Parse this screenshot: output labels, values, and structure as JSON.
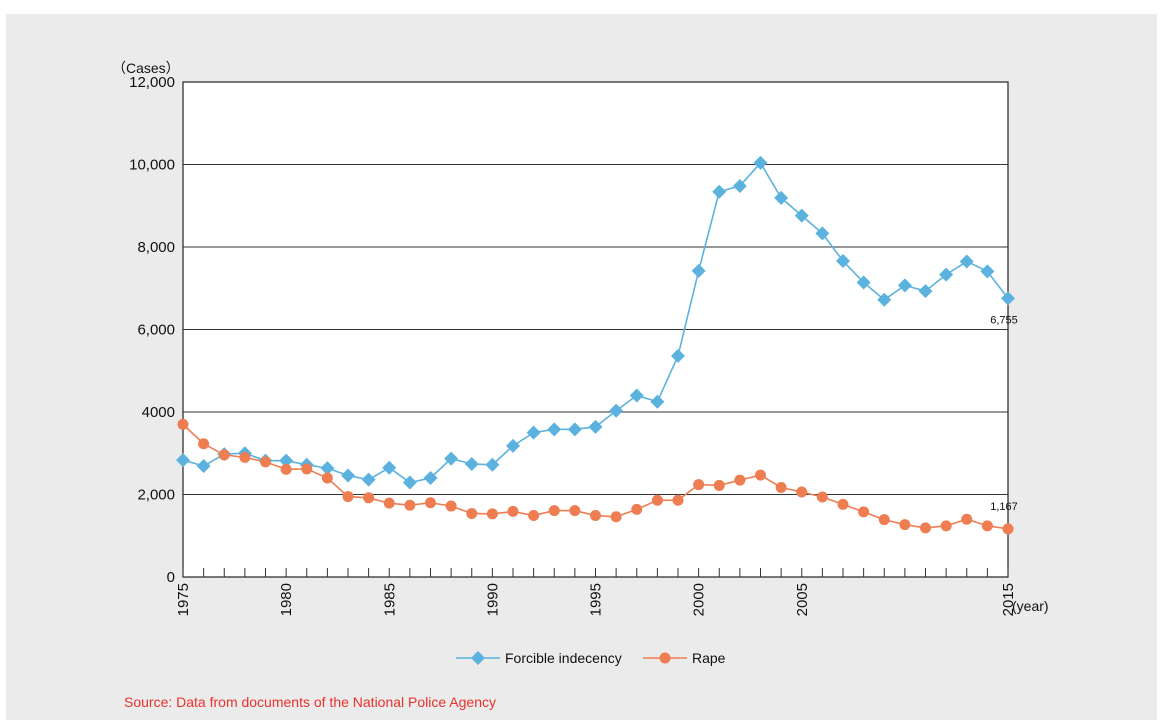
{
  "chart_data": {
    "type": "line",
    "title": "",
    "ylabel": "（Cases）",
    "xlabel": "(year)",
    "ylim": [
      0,
      12000
    ],
    "xlim": [
      1975,
      2015
    ],
    "y_ticks": [
      {
        "value": 0,
        "label": "0"
      },
      {
        "value": 2000,
        "label": "2,000"
      },
      {
        "value": 4000,
        "label": "4000"
      },
      {
        "value": 6000,
        "label": "6,000"
      },
      {
        "value": 8000,
        "label": "8,000"
      },
      {
        "value": 10000,
        "label": "10,000"
      },
      {
        "value": 12000,
        "label": "12,000"
      }
    ],
    "x_tick_labels": [
      "1975",
      "1980",
      "1985",
      "1990",
      "1995",
      "2000",
      "2005",
      "2015"
    ],
    "grid": true,
    "legend": "bottom-center",
    "x": [
      1975,
      1976,
      1977,
      1978,
      1979,
      1980,
      1981,
      1982,
      1983,
      1984,
      1985,
      1986,
      1987,
      1988,
      1989,
      1990,
      1991,
      1992,
      1993,
      1994,
      1995,
      1996,
      1997,
      1998,
      1999,
      2000,
      2001,
      2002,
      2003,
      2004,
      2005,
      2006,
      2007,
      2008,
      2009,
      2010,
      2011,
      2012,
      2013,
      2014,
      2015
    ],
    "series": [
      {
        "name": "Forcible indecency",
        "color": "#5bb2de",
        "marker": "diamond",
        "values": [
          2833,
          2690,
          2980,
          3000,
          2820,
          2820,
          2720,
          2640,
          2460,
          2360,
          2650,
          2290,
          2400,
          2870,
          2740,
          2720,
          3180,
          3500,
          3580,
          3580,
          3640,
          4030,
          4400,
          4250,
          5360,
          7420,
          9340,
          9480,
          10040,
          9190,
          8760,
          8330,
          7660,
          7140,
          6720,
          7070,
          6930,
          7330,
          7650,
          7410,
          6755
        ]
      },
      {
        "name": "Rape",
        "color": "#ef7d52",
        "marker": "circle",
        "values": [
          3700,
          3230,
          2960,
          2900,
          2790,
          2610,
          2620,
          2400,
          1950,
          1920,
          1790,
          1740,
          1800,
          1720,
          1540,
          1530,
          1590,
          1490,
          1610,
          1610,
          1490,
          1460,
          1640,
          1860,
          1860,
          2240,
          2220,
          2350,
          2470,
          2170,
          2060,
          1940,
          1760,
          1580,
          1390,
          1270,
          1190,
          1240,
          1400,
          1240,
          1167
        ]
      }
    ],
    "annotations": [
      {
        "series": "Forcible indecency",
        "x": 2015,
        "text": "6,755"
      },
      {
        "series": "Rape",
        "x": 2015,
        "text": "1,167"
      }
    ]
  },
  "source": "Source: Data from documents of the National Police Agency"
}
